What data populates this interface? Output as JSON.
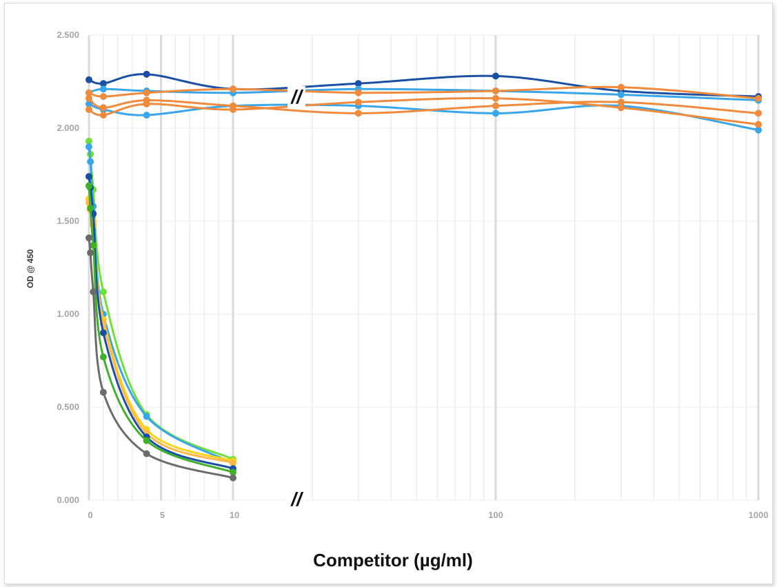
{
  "chart_data": {
    "type": "line",
    "ylabel": "OD @ 450",
    "xlabel": "Competitor (µg/ml)",
    "y_ticks": [
      "0.000",
      "0.500",
      "1.000",
      "1.500",
      "2.000",
      "2.500"
    ],
    "x_ticks_linear": [
      "0",
      "5",
      "10"
    ],
    "x_ticks_log": [
      "100",
      "1000"
    ],
    "ylim": [
      0,
      2.5
    ],
    "x_axis": "broken: linear 0–10, then log 10–1000",
    "axis_break": "//",
    "grid": true,
    "series": [
      {
        "color": "#6fe03a",
        "x": [
          0,
          0.1,
          0.3,
          1,
          4,
          10
        ],
        "values": [
          1.93,
          1.86,
          1.67,
          1.12,
          0.46,
          0.22
        ]
      },
      {
        "color": "#38a6e8",
        "x": [
          0,
          0.1,
          0.3,
          1,
          4,
          10
        ],
        "values": [
          1.9,
          1.82,
          1.58,
          1.0,
          0.45,
          0.2
        ]
      },
      {
        "color": "#ffd21a",
        "x": [
          0,
          0.1,
          0.3,
          1,
          4,
          10
        ],
        "values": [
          1.62,
          1.58,
          1.5,
          0.97,
          0.38,
          0.21
        ]
      },
      {
        "color": "#ffb84a",
        "x": [
          0,
          0.1,
          0.3,
          1,
          4,
          10
        ],
        "values": [
          1.6,
          1.56,
          1.48,
          0.95,
          0.36,
          0.2
        ]
      },
      {
        "color": "#1a4fa6",
        "x": [
          0,
          0.1,
          0.3,
          1,
          4,
          10
        ],
        "values": [
          1.74,
          1.68,
          1.54,
          0.9,
          0.34,
          0.17
        ]
      },
      {
        "color": "#3fb028",
        "x": [
          0,
          0.1,
          0.3,
          1,
          4,
          10
        ],
        "values": [
          1.69,
          1.57,
          1.37,
          0.77,
          0.32,
          0.15
        ]
      },
      {
        "color": "#6b6b6b",
        "x": [
          0,
          0.1,
          0.3,
          1,
          4,
          10
        ],
        "values": [
          1.41,
          1.33,
          1.12,
          0.58,
          0.25,
          0.12
        ]
      },
      {
        "color": "#1a4fa6",
        "x": [
          0,
          1,
          4,
          10,
          30,
          100,
          300,
          1000
        ],
        "values": [
          2.26,
          2.24,
          2.29,
          2.21,
          2.24,
          2.28,
          2.2,
          2.17
        ]
      },
      {
        "color": "#38a6e8",
        "x": [
          0,
          1,
          4,
          10,
          30,
          100,
          300,
          1000
        ],
        "values": [
          2.19,
          2.21,
          2.2,
          2.19,
          2.21,
          2.2,
          2.18,
          2.15
        ]
      },
      {
        "color": "#38a6e8",
        "x": [
          0,
          1,
          4,
          10,
          30,
          100,
          300,
          1000
        ],
        "values": [
          2.13,
          2.1,
          2.07,
          2.12,
          2.12,
          2.08,
          2.12,
          1.99
        ]
      },
      {
        "color": "#f08a3c",
        "x": [
          0,
          1,
          4,
          10,
          30,
          100,
          300,
          1000
        ],
        "values": [
          2.19,
          2.17,
          2.19,
          2.21,
          2.19,
          2.2,
          2.22,
          2.16
        ]
      },
      {
        "color": "#f08a3c",
        "x": [
          0,
          1,
          4,
          10,
          30,
          100,
          300,
          1000
        ],
        "values": [
          2.16,
          2.11,
          2.15,
          2.12,
          2.08,
          2.12,
          2.14,
          2.08
        ]
      },
      {
        "color": "#f08a3c",
        "x": [
          0,
          1,
          4,
          10,
          30,
          100,
          300,
          1000
        ],
        "values": [
          2.1,
          2.07,
          2.13,
          2.1,
          2.14,
          2.16,
          2.11,
          2.02
        ]
      }
    ]
  }
}
